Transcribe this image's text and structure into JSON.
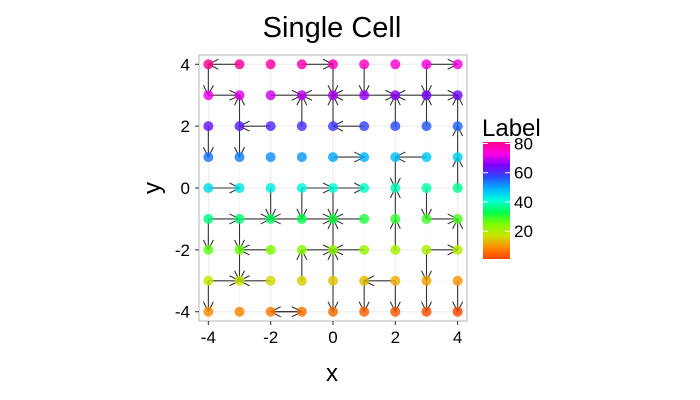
{
  "chart_data": {
    "type": "scatter",
    "title": "Single Cell",
    "xlabel": "x",
    "ylabel": "y",
    "xlim": [
      -4.3,
      4.3
    ],
    "ylim": [
      -4.3,
      4.3
    ],
    "x_ticks": [
      -4,
      -2,
      0,
      2,
      4
    ],
    "y_ticks": [
      -4,
      -2,
      0,
      2,
      4
    ],
    "grid": true,
    "legend": {
      "title": "Label",
      "placement": "right",
      "ticks": [
        20,
        40,
        60,
        80
      ],
      "range": [
        1,
        81
      ],
      "colors": [
        "#ff4500",
        "#ff8c00",
        "#c8e400",
        "#7dff00",
        "#00ff4e",
        "#00ffd8",
        "#00b4ff",
        "#2a4cff",
        "#7b00ff",
        "#ff00e4",
        "#ff0090"
      ]
    },
    "points": [
      {
        "x": -4,
        "y": 4,
        "label": 81
      },
      {
        "x": -3,
        "y": 4,
        "label": 80
      },
      {
        "x": -2,
        "y": 4,
        "label": 79
      },
      {
        "x": -1,
        "y": 4,
        "label": 78
      },
      {
        "x": 0,
        "y": 4,
        "label": 77
      },
      {
        "x": 1,
        "y": 4,
        "label": 76
      },
      {
        "x": 2,
        "y": 4,
        "label": 75
      },
      {
        "x": 3,
        "y": 4,
        "label": 74
      },
      {
        "x": 4,
        "y": 4,
        "label": 73
      },
      {
        "x": -4,
        "y": 3,
        "label": 72
      },
      {
        "x": -3,
        "y": 3,
        "label": 71
      },
      {
        "x": -2,
        "y": 3,
        "label": 70
      },
      {
        "x": -1,
        "y": 3,
        "label": 69
      },
      {
        "x": 0,
        "y": 3,
        "label": 68
      },
      {
        "x": 1,
        "y": 3,
        "label": 67
      },
      {
        "x": 2,
        "y": 3,
        "label": 66
      },
      {
        "x": 3,
        "y": 3,
        "label": 65
      },
      {
        "x": 4,
        "y": 3,
        "label": 64
      },
      {
        "x": -4,
        "y": 2,
        "label": 63
      },
      {
        "x": -3,
        "y": 2,
        "label": 62
      },
      {
        "x": -2,
        "y": 2,
        "label": 61
      },
      {
        "x": -1,
        "y": 2,
        "label": 60
      },
      {
        "x": 0,
        "y": 2,
        "label": 59
      },
      {
        "x": 1,
        "y": 2,
        "label": 58
      },
      {
        "x": 2,
        "y": 2,
        "label": 57
      },
      {
        "x": 3,
        "y": 2,
        "label": 56
      },
      {
        "x": 4,
        "y": 2,
        "label": 55
      },
      {
        "x": -4,
        "y": 1,
        "label": 54
      },
      {
        "x": -3,
        "y": 1,
        "label": 53
      },
      {
        "x": -2,
        "y": 1,
        "label": 52
      },
      {
        "x": -1,
        "y": 1,
        "label": 51
      },
      {
        "x": 0,
        "y": 1,
        "label": 50
      },
      {
        "x": 1,
        "y": 1,
        "label": 49
      },
      {
        "x": 2,
        "y": 1,
        "label": 48
      },
      {
        "x": 3,
        "y": 1,
        "label": 47
      },
      {
        "x": 4,
        "y": 1,
        "label": 46
      },
      {
        "x": -4,
        "y": 0,
        "label": 45
      },
      {
        "x": -3,
        "y": 0,
        "label": 44
      },
      {
        "x": -2,
        "y": 0,
        "label": 43
      },
      {
        "x": -1,
        "y": 0,
        "label": 42
      },
      {
        "x": 0,
        "y": 0,
        "label": 41
      },
      {
        "x": 1,
        "y": 0,
        "label": 40
      },
      {
        "x": 2,
        "y": 0,
        "label": 39
      },
      {
        "x": 3,
        "y": 0,
        "label": 38
      },
      {
        "x": 4,
        "y": 0,
        "label": 37
      },
      {
        "x": -4,
        "y": -1,
        "label": 36
      },
      {
        "x": -3,
        "y": -1,
        "label": 35
      },
      {
        "x": -2,
        "y": -1,
        "label": 34
      },
      {
        "x": -1,
        "y": -1,
        "label": 33
      },
      {
        "x": 0,
        "y": -1,
        "label": 32
      },
      {
        "x": 1,
        "y": -1,
        "label": 31
      },
      {
        "x": 2,
        "y": -1,
        "label": 30
      },
      {
        "x": 3,
        "y": -1,
        "label": 29
      },
      {
        "x": 4,
        "y": -1,
        "label": 28
      },
      {
        "x": -4,
        "y": -2,
        "label": 27
      },
      {
        "x": -3,
        "y": -2,
        "label": 26
      },
      {
        "x": -2,
        "y": -2,
        "label": 25
      },
      {
        "x": -1,
        "y": -2,
        "label": 24
      },
      {
        "x": 0,
        "y": -2,
        "label": 23
      },
      {
        "x": 1,
        "y": -2,
        "label": 22
      },
      {
        "x": 2,
        "y": -2,
        "label": 21
      },
      {
        "x": 3,
        "y": -2,
        "label": 20
      },
      {
        "x": 4,
        "y": -2,
        "label": 19
      },
      {
        "x": -4,
        "y": -3,
        "label": 18
      },
      {
        "x": -3,
        "y": -3,
        "label": 17
      },
      {
        "x": -2,
        "y": -3,
        "label": 16
      },
      {
        "x": -1,
        "y": -3,
        "label": 15
      },
      {
        "x": 0,
        "y": -3,
        "label": 14
      },
      {
        "x": 1,
        "y": -3,
        "label": 13
      },
      {
        "x": 2,
        "y": -3,
        "label": 12
      },
      {
        "x": 3,
        "y": -3,
        "label": 11
      },
      {
        "x": 4,
        "y": -3,
        "label": 10
      },
      {
        "x": -4,
        "y": -4,
        "label": 9
      },
      {
        "x": -3,
        "y": -4,
        "label": 8
      },
      {
        "x": -2,
        "y": -4,
        "label": 7
      },
      {
        "x": -1,
        "y": -4,
        "label": 6
      },
      {
        "x": 0,
        "y": -4,
        "label": 5
      },
      {
        "x": 1,
        "y": -4,
        "label": 4
      },
      {
        "x": 2,
        "y": -4,
        "label": 3
      },
      {
        "x": 3,
        "y": -4,
        "label": 2
      },
      {
        "x": 4,
        "y": -4,
        "label": 1
      }
    ],
    "arrows": [
      {
        "from": [
          -3,
          4
        ],
        "to": [
          -4,
          4
        ]
      },
      {
        "from": [
          -1,
          4
        ],
        "to": [
          0,
          4
        ]
      },
      {
        "from": [
          0,
          4
        ],
        "to": [
          0,
          3
        ]
      },
      {
        "from": [
          1,
          4
        ],
        "to": [
          1,
          3
        ]
      },
      {
        "from": [
          3,
          4
        ],
        "to": [
          4,
          4
        ]
      },
      {
        "from": [
          3,
          4
        ],
        "to": [
          3,
          3
        ]
      },
      {
        "from": [
          -4,
          4
        ],
        "to": [
          -4,
          3
        ]
      },
      {
        "from": [
          -4,
          3
        ],
        "to": [
          -3,
          3
        ]
      },
      {
        "from": [
          -2,
          3
        ],
        "to": [
          -1,
          3
        ]
      },
      {
        "from": [
          0,
          3
        ],
        "to": [
          -1,
          3
        ]
      },
      {
        "from": [
          1,
          3
        ],
        "to": [
          0,
          3
        ]
      },
      {
        "from": [
          1,
          3
        ],
        "to": [
          2,
          3
        ]
      },
      {
        "from": [
          3,
          3
        ],
        "to": [
          2,
          3
        ]
      },
      {
        "from": [
          3,
          3
        ],
        "to": [
          4,
          3
        ]
      },
      {
        "from": [
          -3,
          2
        ],
        "to": [
          -3,
          3
        ]
      },
      {
        "from": [
          -1,
          2
        ],
        "to": [
          -1,
          3
        ]
      },
      {
        "from": [
          2,
          2
        ],
        "to": [
          2,
          3
        ]
      },
      {
        "from": [
          3,
          2
        ],
        "to": [
          3,
          3
        ]
      },
      {
        "from": [
          4,
          2
        ],
        "to": [
          4,
          3
        ]
      },
      {
        "from": [
          -2,
          2
        ],
        "to": [
          -3,
          2
        ]
      },
      {
        "from": [
          -4,
          2
        ],
        "to": [
          -4,
          1
        ]
      },
      {
        "from": [
          -3,
          2
        ],
        "to": [
          -3,
          1
        ]
      },
      {
        "from": [
          1,
          2
        ],
        "to": [
          0,
          2
        ]
      },
      {
        "from": [
          0,
          2
        ],
        "to": [
          0,
          3
        ]
      },
      {
        "from": [
          0,
          1
        ],
        "to": [
          1,
          1
        ]
      },
      {
        "from": [
          3,
          1
        ],
        "to": [
          2,
          1
        ]
      },
      {
        "from": [
          2,
          1
        ],
        "to": [
          2,
          0
        ]
      },
      {
        "from": [
          4,
          1
        ],
        "to": [
          4,
          2
        ]
      },
      {
        "from": [
          -4,
          0
        ],
        "to": [
          -3,
          0
        ]
      },
      {
        "from": [
          -1,
          0
        ],
        "to": [
          0,
          0
        ]
      },
      {
        "from": [
          0,
          0
        ],
        "to": [
          1,
          0
        ]
      },
      {
        "from": [
          4,
          0
        ],
        "to": [
          4,
          1
        ]
      },
      {
        "from": [
          -2,
          0
        ],
        "to": [
          -2,
          -1
        ]
      },
      {
        "from": [
          -4,
          -1
        ],
        "to": [
          -3,
          -1
        ]
      },
      {
        "from": [
          -3,
          -1
        ],
        "to": [
          -2,
          -1
        ]
      },
      {
        "from": [
          -1,
          -1
        ],
        "to": [
          -2,
          -1
        ]
      },
      {
        "from": [
          -1,
          -1
        ],
        "to": [
          0,
          -1
        ]
      },
      {
        "from": [
          1,
          -1
        ],
        "to": [
          0,
          -1
        ]
      },
      {
        "from": [
          0,
          0
        ],
        "to": [
          0,
          -1
        ]
      },
      {
        "from": [
          0,
          -2
        ],
        "to": [
          0,
          -1
        ]
      },
      {
        "from": [
          -1,
          0
        ],
        "to": [
          -1,
          -1
        ]
      },
      {
        "from": [
          2,
          -1
        ],
        "to": [
          2,
          0
        ]
      },
      {
        "from": [
          3,
          -1
        ],
        "to": [
          4,
          -1
        ]
      },
      {
        "from": [
          3,
          0
        ],
        "to": [
          3,
          -1
        ]
      },
      {
        "from": [
          4,
          -2
        ],
        "to": [
          4,
          -1
        ]
      },
      {
        "from": [
          -4,
          -1
        ],
        "to": [
          -4,
          -2
        ]
      },
      {
        "from": [
          -3,
          -1
        ],
        "to": [
          -3,
          -2
        ]
      },
      {
        "from": [
          -2,
          -2
        ],
        "to": [
          -3,
          -2
        ]
      },
      {
        "from": [
          -1,
          -2
        ],
        "to": [
          0,
          -2
        ]
      },
      {
        "from": [
          1,
          -2
        ],
        "to": [
          0,
          -2
        ]
      },
      {
        "from": [
          2,
          -2
        ],
        "to": [
          2,
          -1
        ]
      },
      {
        "from": [
          3,
          -2
        ],
        "to": [
          4,
          -2
        ]
      },
      {
        "from": [
          3,
          -2
        ],
        "to": [
          3,
          -3
        ]
      },
      {
        "from": [
          -3,
          -2
        ],
        "to": [
          -3,
          -3
        ]
      },
      {
        "from": [
          -4,
          -3
        ],
        "to": [
          -3,
          -3
        ]
      },
      {
        "from": [
          -2,
          -3
        ],
        "to": [
          -3,
          -3
        ]
      },
      {
        "from": [
          -1,
          -3
        ],
        "to": [
          -1,
          -2
        ]
      },
      {
        "from": [
          0,
          -3
        ],
        "to": [
          0,
          -2
        ]
      },
      {
        "from": [
          2,
          -3
        ],
        "to": [
          1,
          -3
        ]
      },
      {
        "from": [
          1,
          -3
        ],
        "to": [
          1,
          -4
        ]
      },
      {
        "from": [
          2,
          -3
        ],
        "to": [
          2,
          -4
        ]
      },
      {
        "from": [
          3,
          -3
        ],
        "to": [
          3,
          -4
        ]
      },
      {
        "from": [
          4,
          -3
        ],
        "to": [
          4,
          -4
        ]
      },
      {
        "from": [
          -4,
          -3
        ],
        "to": [
          -4,
          -4
        ]
      },
      {
        "from": [
          -2,
          -4
        ],
        "to": [
          -1,
          -4
        ]
      },
      {
        "from": [
          -1,
          -4
        ],
        "to": [
          -2,
          -4
        ]
      },
      {
        "from": [
          0,
          -3
        ],
        "to": [
          0,
          -4
        ]
      }
    ]
  }
}
